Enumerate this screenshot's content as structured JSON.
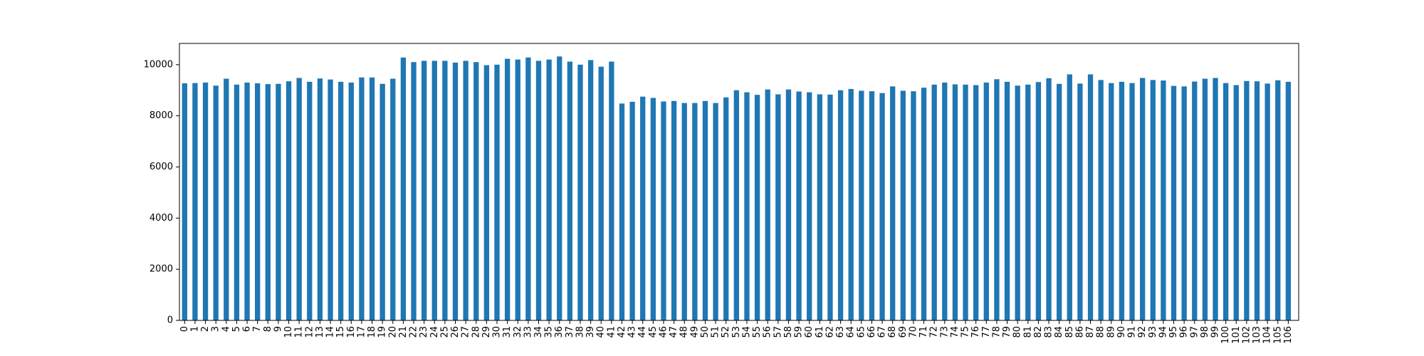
{
  "chart_data": {
    "type": "bar",
    "categories": [
      "0",
      "1",
      "2",
      "3",
      "4",
      "5",
      "6",
      "7",
      "8",
      "9",
      "10",
      "11",
      "12",
      "13",
      "14",
      "15",
      "16",
      "17",
      "18",
      "19",
      "20",
      "21",
      "22",
      "23",
      "24",
      "25",
      "26",
      "27",
      "28",
      "29",
      "30",
      "31",
      "32",
      "33",
      "34",
      "35",
      "36",
      "37",
      "38",
      "39",
      "40",
      "41",
      "42",
      "43",
      "44",
      "45",
      "46",
      "47",
      "48",
      "49",
      "50",
      "51",
      "52",
      "53",
      "54",
      "55",
      "56",
      "57",
      "58",
      "59",
      "60",
      "61",
      "62",
      "63",
      "64",
      "65",
      "66",
      "67",
      "68",
      "69",
      "70",
      "71",
      "72",
      "73",
      "74",
      "75",
      "76",
      "77",
      "78",
      "79",
      "80",
      "81",
      "82",
      "83",
      "84",
      "85",
      "86",
      "87",
      "88",
      "89",
      "90",
      "91",
      "92",
      "93",
      "94",
      "95",
      "96",
      "97",
      "98",
      "99",
      "100",
      "101",
      "102",
      "103",
      "104",
      "105",
      "106"
    ],
    "values": [
      9270,
      9280,
      9300,
      9180,
      9450,
      9220,
      9300,
      9270,
      9240,
      9250,
      9350,
      9480,
      9330,
      9460,
      9420,
      9330,
      9300,
      9500,
      9500,
      9250,
      9450,
      10280,
      10100,
      10150,
      10150,
      10150,
      10080,
      10150,
      10100,
      9980,
      10000,
      10230,
      10200,
      10280,
      10150,
      10200,
      10320,
      10120,
      10000,
      10180,
      9920,
      10120,
      8480,
      8550,
      8750,
      8700,
      8560,
      8580,
      8500,
      8500,
      8580,
      8500,
      8720,
      9000,
      8920,
      8820,
      9030,
      8840,
      9030,
      8950,
      8920,
      8840,
      8830,
      9000,
      9050,
      8980,
      8960,
      8890,
      9150,
      8980,
      8960,
      9100,
      9220,
      9300,
      9230,
      9220,
      9200,
      9300,
      9430,
      9330,
      9180,
      9220,
      9320,
      9470,
      9250,
      9620,
      9260,
      9620,
      9400,
      9280,
      9330,
      9280,
      9480,
      9400,
      9380,
      9170,
      9150,
      9340,
      9450,
      9480,
      9280,
      9200,
      9360,
      9350,
      9260,
      9390,
      9330
    ],
    "color": "#1f77b4",
    "ylim": [
      0,
      10830
    ],
    "yticks": [
      0,
      2000,
      4000,
      6000,
      8000,
      10000
    ],
    "grid": false
  }
}
